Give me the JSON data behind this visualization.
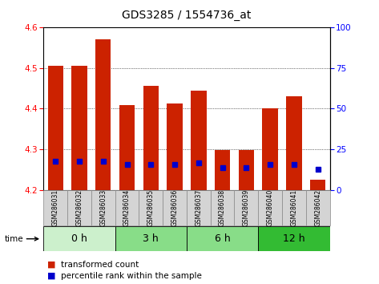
{
  "title": "GDS3285 / 1554736_at",
  "samples": [
    "GSM286031",
    "GSM286032",
    "GSM286033",
    "GSM286034",
    "GSM286035",
    "GSM286036",
    "GSM286037",
    "GSM286038",
    "GSM286039",
    "GSM286040",
    "GSM286041",
    "GSM286042"
  ],
  "transformed_count": [
    4.505,
    4.505,
    4.57,
    4.408,
    4.455,
    4.413,
    4.445,
    4.298,
    4.298,
    4.4,
    4.43,
    4.225
  ],
  "percentile_rank": [
    18,
    18,
    18,
    16,
    16,
    16,
    17,
    14,
    14,
    16,
    16,
    13
  ],
  "ylim_left": [
    4.2,
    4.6
  ],
  "ylim_right": [
    0,
    100
  ],
  "yticks_left": [
    4.2,
    4.3,
    4.4,
    4.5,
    4.6
  ],
  "yticks_right": [
    0,
    25,
    50,
    75,
    100
  ],
  "bar_color_red": "#cc2200",
  "bar_color_blue": "#0000cc",
  "xlabel_time": "time",
  "legend_red_label": "transformed count",
  "legend_blue_label": "percentile rank within the sample",
  "base_value": 4.2,
  "bar_width": 0.65,
  "title_fontsize": 10,
  "tick_fontsize": 7.5,
  "sample_fontsize": 5.5,
  "group_label_fontsize": 9,
  "legend_fontsize": 7.5,
  "groups": [
    {
      "label": "0 h",
      "start": 0,
      "end": 2,
      "color": "#ccf0cc"
    },
    {
      "label": "3 h",
      "start": 3,
      "end": 5,
      "color": "#88dd88"
    },
    {
      "label": "6 h",
      "start": 6,
      "end": 8,
      "color": "#88dd88"
    },
    {
      "label": "12 h",
      "start": 9,
      "end": 11,
      "color": "#33bb33"
    }
  ],
  "sample_bg_color": "#d4d4d4",
  "sample_border_color": "#888888",
  "grid_lines": [
    4.3,
    4.4,
    4.5
  ],
  "grid_color": "black",
  "grid_lw": 0.5
}
